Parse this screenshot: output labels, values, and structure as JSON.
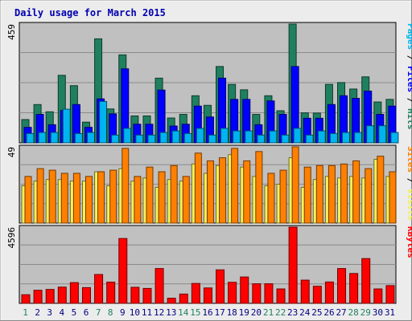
{
  "chart_data": {
    "type": "bar",
    "title": "Daily usage for March 2015",
    "categories": [
      "1",
      "2",
      "3",
      "4",
      "5",
      "6",
      "7",
      "8",
      "9",
      "10",
      "11",
      "12",
      "13",
      "14",
      "15",
      "16",
      "17",
      "18",
      "19",
      "20",
      "21",
      "22",
      "23",
      "24",
      "25",
      "26",
      "27",
      "28",
      "29",
      "30",
      "31"
    ],
    "weekend_days": [
      "1",
      "7",
      "8",
      "14",
      "15",
      "21",
      "22",
      "28",
      "29"
    ],
    "panels": [
      {
        "id": "hits",
        "ymax_label": "459",
        "ymax": 459,
        "right_label": [
          {
            "text": "Pages",
            "color": "#00b4f0"
          },
          {
            "text": " / ",
            "color": "#000000"
          },
          {
            "text": "Files",
            "color": "#0000ff"
          },
          {
            "text": " / ",
            "color": "#000000"
          },
          {
            "text": "Hits",
            "color": "#1f8060"
          }
        ],
        "series": [
          {
            "name": "Hits",
            "color": "#1f8060",
            "values": [
              90,
              148,
              120,
              261,
              221,
              80,
              402,
              131,
              340,
              104,
              104,
              250,
              96,
              110,
              182,
              145,
              295,
              226,
              205,
              110,
              182,
              124,
              459,
              116,
              115,
              226,
              233,
              208,
              255,
              158,
              168
            ]
          },
          {
            "name": "Files",
            "color": "#0000ff",
            "values": [
              60,
              110,
              70,
              125,
              148,
              60,
              170,
              112,
              286,
              72,
              72,
              204,
              65,
              72,
              142,
              100,
              250,
              168,
              168,
              70,
              162,
              110,
              295,
              95,
              95,
              148,
              182,
              172,
              200,
              110,
              142
            ]
          },
          {
            "name": "Pages",
            "color": "#00b4f0",
            "values": [
              36,
              40,
              40,
              130,
              36,
              40,
              160,
              30,
              56,
              30,
              30,
              40,
              46,
              36,
              56,
              30,
              56,
              46,
              46,
              30,
              46,
              30,
              56,
              30,
              46,
              36,
              40,
              40,
              66,
              66,
              40
            ]
          }
        ]
      },
      {
        "id": "visits",
        "ymax_label": "49",
        "ymax": 49,
        "right_label": [
          {
            "text": "Sites",
            "color": "#ff8000"
          },
          {
            "text": " / ",
            "color": "#000000"
          },
          {
            "text": "Visits",
            "color": "#f5f05a"
          }
        ],
        "series": [
          {
            "name": "Visits",
            "color": "#f5f05a",
            "values": [
              24,
              27,
              28,
              28,
              27,
              27,
              33,
              24,
              35,
              27,
              29,
              23,
              28,
              27,
              38,
              32,
              37,
              44,
              36,
              30,
              24,
              25,
              42,
              23,
              28,
              30,
              29,
              30,
              29,
              41,
              30
            ]
          },
          {
            "name": "Sites",
            "color": "#ff8000",
            "values": [
              30,
              35,
              34,
              32,
              32,
              30,
              33,
              34,
              48,
              30,
              36,
              33,
              37,
              30,
              45,
              40,
              42,
              48,
              40,
              46,
              32,
              34,
              49,
              36,
              37,
              37,
              38,
              40,
              35,
              43,
              33
            ]
          }
        ]
      },
      {
        "id": "kbytes",
        "ymax_label": "4596",
        "ymax": 4596,
        "right_label": [
          {
            "text": "KBytes",
            "color": "#ff0000"
          }
        ],
        "series": [
          {
            "name": "KBytes",
            "color": "#ff0000",
            "values": [
              520,
              790,
              840,
              980,
              1250,
              950,
              1740,
              1280,
              3910,
              970,
              900,
              2100,
              310,
              560,
              1200,
              930,
              2020,
              1270,
              1590,
              1180,
              1180,
              870,
              4596,
              1400,
              1030,
              1290,
              2100,
              1800,
              2700,
              870,
              1070
            ]
          }
        ]
      }
    ]
  }
}
